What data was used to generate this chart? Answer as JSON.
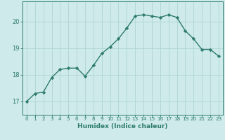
{
  "x": [
    0,
    1,
    2,
    3,
    4,
    5,
    6,
    7,
    8,
    9,
    10,
    11,
    12,
    13,
    14,
    15,
    16,
    17,
    18,
    19,
    20,
    21,
    22,
    23
  ],
  "y": [
    17.0,
    17.3,
    17.35,
    17.9,
    18.2,
    18.25,
    18.25,
    17.95,
    18.35,
    18.8,
    19.05,
    19.35,
    19.75,
    20.2,
    20.25,
    20.2,
    20.15,
    20.25,
    20.15,
    19.65,
    19.35,
    18.95,
    18.95,
    18.7
  ],
  "xlabel": "Humidex (Indice chaleur)",
  "ylim": [
    16.5,
    20.75
  ],
  "xlim": [
    -0.5,
    23.5
  ],
  "yticks": [
    17,
    18,
    19,
    20
  ],
  "xticks": [
    0,
    1,
    2,
    3,
    4,
    5,
    6,
    7,
    8,
    9,
    10,
    11,
    12,
    13,
    14,
    15,
    16,
    17,
    18,
    19,
    20,
    21,
    22,
    23
  ],
  "line_color": "#2e7b6e",
  "bg_color": "#ceeaea",
  "grid_color": "#b0d4d4",
  "marker": "D",
  "marker_size": 2.2,
  "line_width": 1.0,
  "xlabel_fontsize": 6.5,
  "ytick_fontsize": 6.0,
  "xtick_fontsize": 5.2
}
